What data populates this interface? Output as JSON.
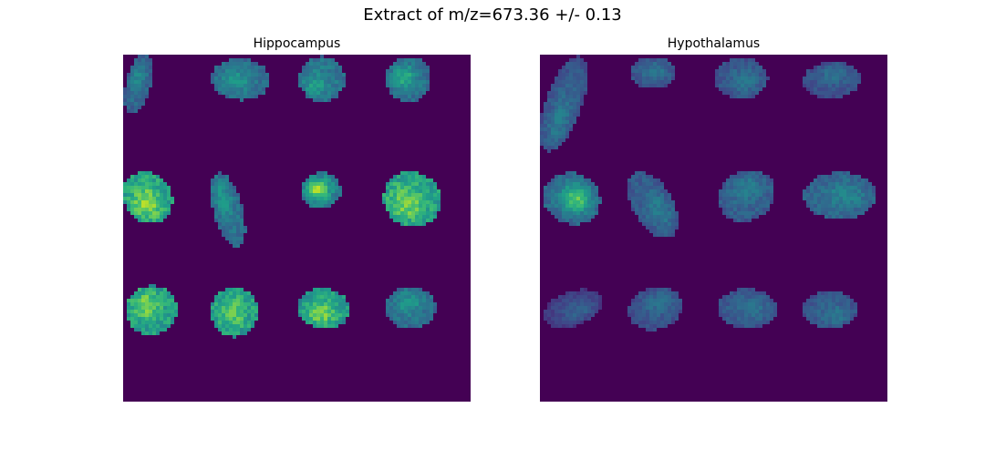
{
  "figure": {
    "suptitle": "Extract of m/z=673.36 +/- 0.13"
  },
  "colors": {
    "background": "#440154",
    "colormap": "viridis"
  },
  "chart_data": [
    {
      "type": "heatmap",
      "title": "Hippocampus",
      "xlabel": "",
      "ylabel": "",
      "axes": "off",
      "grid": false,
      "layout": {
        "rows": 3,
        "cols": 4
      },
      "sections": [
        {
          "row": 1,
          "col": 1,
          "mean_intensity": 0.35,
          "max_intensity": 0.5
        },
        {
          "row": 1,
          "col": 2,
          "mean_intensity": 0.4,
          "max_intensity": 0.55
        },
        {
          "row": 1,
          "col": 3,
          "mean_intensity": 0.42,
          "max_intensity": 0.6
        },
        {
          "row": 1,
          "col": 4,
          "mean_intensity": 0.4,
          "max_intensity": 0.65
        },
        {
          "row": 2,
          "col": 1,
          "mean_intensity": 0.62,
          "max_intensity": 0.9
        },
        {
          "row": 2,
          "col": 2,
          "mean_intensity": 0.4,
          "max_intensity": 0.55
        },
        {
          "row": 2,
          "col": 3,
          "mean_intensity": 0.45,
          "max_intensity": 0.95
        },
        {
          "row": 2,
          "col": 4,
          "mean_intensity": 0.62,
          "max_intensity": 0.85
        },
        {
          "row": 3,
          "col": 1,
          "mean_intensity": 0.6,
          "max_intensity": 0.85
        },
        {
          "row": 3,
          "col": 2,
          "mean_intensity": 0.6,
          "max_intensity": 0.8
        },
        {
          "row": 3,
          "col": 3,
          "mean_intensity": 0.58,
          "max_intensity": 0.85
        },
        {
          "row": 3,
          "col": 4,
          "mean_intensity": 0.4,
          "max_intensity": 0.55
        }
      ]
    },
    {
      "type": "heatmap",
      "title": "Hypothalamus",
      "xlabel": "",
      "ylabel": "",
      "axes": "off",
      "grid": false,
      "layout": {
        "rows": 3,
        "cols": 4
      },
      "sections": [
        {
          "row": 1,
          "col": 1,
          "mean_intensity": 0.3,
          "max_intensity": 0.45
        },
        {
          "row": 1,
          "col": 2,
          "mean_intensity": 0.3,
          "max_intensity": 0.42
        },
        {
          "row": 1,
          "col": 3,
          "mean_intensity": 0.3,
          "max_intensity": 0.42
        },
        {
          "row": 1,
          "col": 4,
          "mean_intensity": 0.28,
          "max_intensity": 0.4
        },
        {
          "row": 2,
          "col": 1,
          "mean_intensity": 0.38,
          "max_intensity": 0.8
        },
        {
          "row": 2,
          "col": 2,
          "mean_intensity": 0.32,
          "max_intensity": 0.45
        },
        {
          "row": 2,
          "col": 3,
          "mean_intensity": 0.33,
          "max_intensity": 0.45
        },
        {
          "row": 2,
          "col": 4,
          "mean_intensity": 0.36,
          "max_intensity": 0.48
        },
        {
          "row": 3,
          "col": 1,
          "mean_intensity": 0.22,
          "max_intensity": 0.35
        },
        {
          "row": 3,
          "col": 2,
          "mean_intensity": 0.28,
          "max_intensity": 0.4
        },
        {
          "row": 3,
          "col": 3,
          "mean_intensity": 0.3,
          "max_intensity": 0.4
        },
        {
          "row": 3,
          "col": 4,
          "mean_intensity": 0.3,
          "max_intensity": 0.42
        }
      ]
    }
  ]
}
